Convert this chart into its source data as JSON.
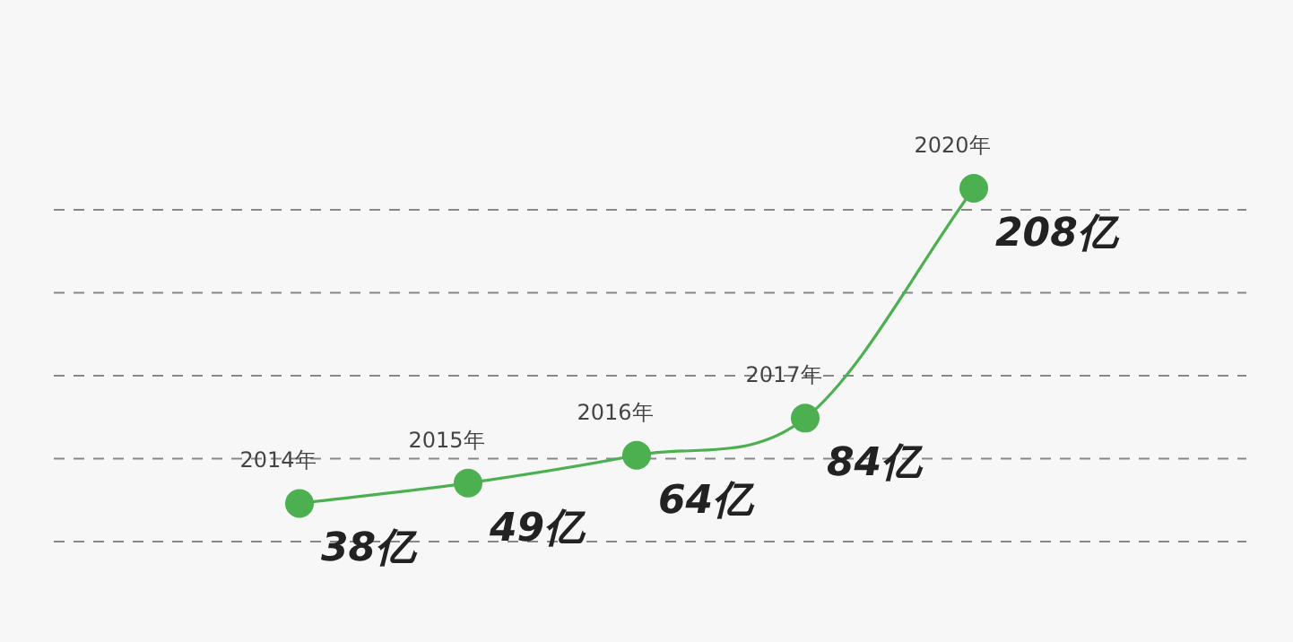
{
  "chart_data": {
    "type": "line",
    "categories": [
      "2014年",
      "2015年",
      "2016年",
      "2017年",
      "2020年"
    ],
    "values": [
      38,
      49,
      64,
      84,
      208
    ],
    "value_labels": [
      "38亿",
      "49亿",
      "64亿",
      "84亿",
      "208亿"
    ],
    "color": "#4caf50",
    "marker": "circle",
    "grid": "y"
  }
}
